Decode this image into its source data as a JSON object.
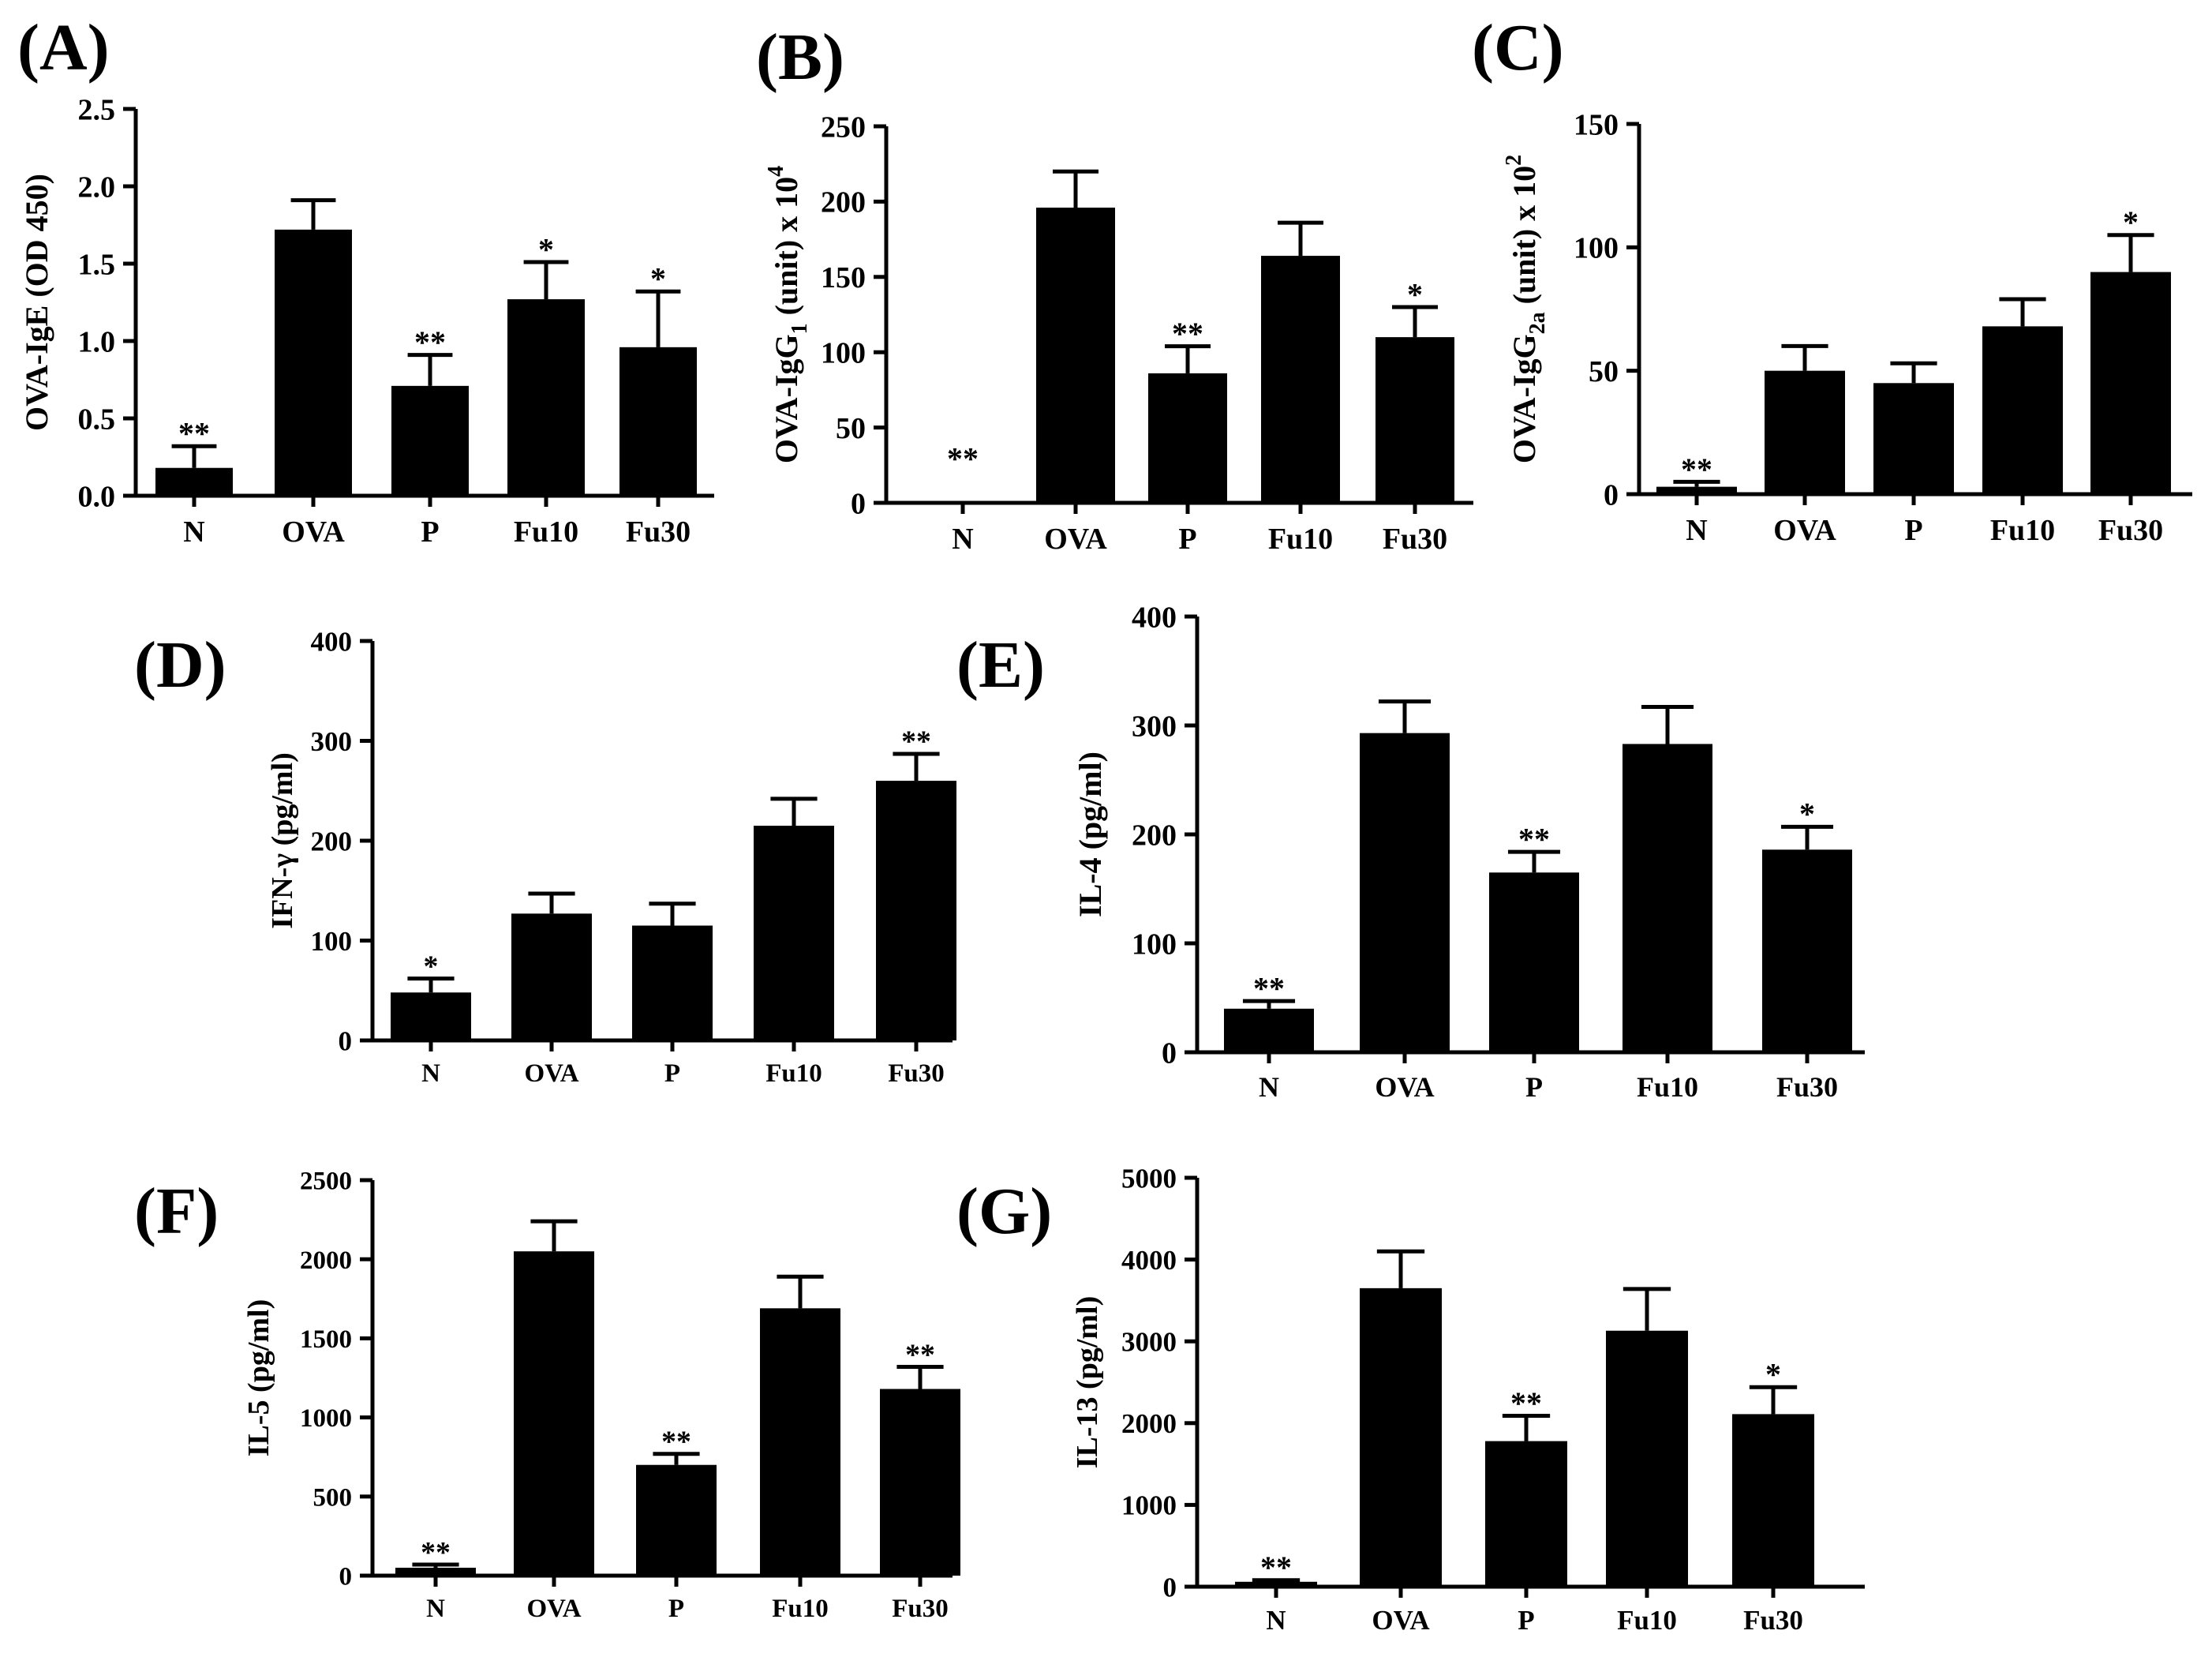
{
  "chart_data": [
    {
      "panel": "(A)",
      "type": "bar",
      "categories": [
        "N",
        "OVA",
        "P",
        "Fu10",
        "Fu30"
      ],
      "values": [
        0.18,
        1.72,
        0.71,
        1.27,
        0.96
      ],
      "errors": [
        0.14,
        0.19,
        0.2,
        0.24,
        0.36
      ],
      "annotations": [
        "**",
        "",
        "**",
        "*",
        "*"
      ],
      "ylabel": "OVA-IgE (OD 450)",
      "yticks": [
        "0.0",
        "0.5",
        "1.0",
        "1.5",
        "2.0",
        "2.5"
      ],
      "ylim": [
        0,
        2.5
      ]
    },
    {
      "panel": "(B)",
      "type": "bar",
      "categories": [
        "N",
        "OVA",
        "P",
        "Fu10",
        "Fu30"
      ],
      "values": [
        0,
        196,
        86,
        164,
        110
      ],
      "errors": [
        0,
        24,
        18,
        22,
        20
      ],
      "annotations": [
        "**",
        "",
        "**",
        "",
        "*"
      ],
      "ylabel": "OVA-IgG1 (unit) x 10^4",
      "ylabel_base": "OVA-IgG",
      "ylabel_sub": "1",
      "ylabel_mid": " (unit) x 10",
      "ylabel_sup": "4",
      "yticks": [
        "0",
        "50",
        "100",
        "150",
        "200",
        "250"
      ],
      "ylim": [
        0,
        250
      ]
    },
    {
      "panel": "(C)",
      "type": "bar",
      "categories": [
        "N",
        "OVA",
        "P",
        "Fu10",
        "Fu30"
      ],
      "values": [
        3,
        50,
        45,
        68,
        90
      ],
      "errors": [
        2,
        10,
        8,
        11,
        15
      ],
      "annotations": [
        "**",
        "",
        "",
        "",
        "*"
      ],
      "ylabel": "OVA-IgG2a (unit) x 10^2",
      "ylabel_base": "OVA-IgG",
      "ylabel_sub": "2a",
      "ylabel_mid": " (unit) x 10",
      "ylabel_sup": "2",
      "yticks": [
        "0",
        "50",
        "100",
        "150"
      ],
      "ylim": [
        0,
        150
      ]
    },
    {
      "panel": "(D)",
      "type": "bar",
      "categories": [
        "N",
        "OVA",
        "P",
        "Fu10",
        "Fu30"
      ],
      "values": [
        48,
        127,
        115,
        215,
        260
      ],
      "errors": [
        14,
        20,
        22,
        27,
        27
      ],
      "annotations": [
        "*",
        "",
        "",
        "",
        "**"
      ],
      "ylabel": "IFN-γ (pg/ml)",
      "yticks": [
        "0",
        "100",
        "200",
        "300",
        "400"
      ],
      "ylim": [
        0,
        400
      ]
    },
    {
      "panel": "(E)",
      "type": "bar",
      "categories": [
        "N",
        "OVA",
        "P",
        "Fu10",
        "Fu30"
      ],
      "values": [
        40,
        293,
        165,
        283,
        186
      ],
      "errors": [
        7,
        29,
        19,
        34,
        21
      ],
      "annotations": [
        "**",
        "",
        "**",
        "",
        "*"
      ],
      "ylabel": "IL-4 (pg/ml)",
      "yticks": [
        "0",
        "100",
        "200",
        "300",
        "400"
      ],
      "ylim": [
        0,
        400
      ]
    },
    {
      "panel": "(F)",
      "type": "bar",
      "categories": [
        "N",
        "OVA",
        "P",
        "Fu10",
        "Fu30"
      ],
      "values": [
        50,
        2050,
        700,
        1690,
        1180
      ],
      "errors": [
        20,
        190,
        70,
        200,
        140
      ],
      "annotations": [
        "**",
        "",
        "**",
        "",
        "**"
      ],
      "ylabel": "IL-5 (pg/ml)",
      "yticks": [
        "0",
        "500",
        "1000",
        "1500",
        "2000",
        "2500"
      ],
      "ylim": [
        0,
        2500
      ]
    },
    {
      "panel": "(G)",
      "type": "bar",
      "categories": [
        "N",
        "OVA",
        "P",
        "Fu10",
        "Fu30"
      ],
      "values": [
        60,
        3650,
        1780,
        3130,
        2110
      ],
      "errors": [
        20,
        450,
        310,
        510,
        330
      ],
      "annotations": [
        "**",
        "",
        "**",
        "",
        "*"
      ],
      "ylabel": "IL-13 (pg/ml)",
      "yticks": [
        "0",
        "1000",
        "2000",
        "3000",
        "4000",
        "5000"
      ],
      "ylim": [
        0,
        5000
      ]
    }
  ]
}
